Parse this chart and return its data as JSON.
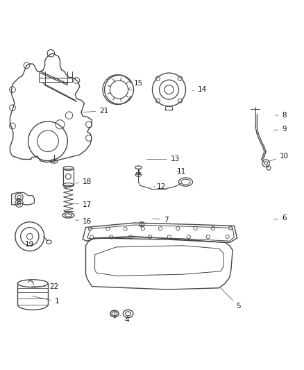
{
  "bg_color": "#ffffff",
  "line_color": "#444444",
  "fig_width": 4.39,
  "fig_height": 5.33,
  "dpi": 100,
  "label_fontsize": 7.5,
  "callouts": {
    "1": [
      0.185,
      0.115,
      0.095,
      0.135
    ],
    "2": [
      0.055,
      0.445,
      0.075,
      0.46
    ],
    "4": [
      0.415,
      0.055,
      0.395,
      0.07
    ],
    "5": [
      0.785,
      0.1,
      0.72,
      0.165
    ],
    "6": [
      0.935,
      0.39,
      0.895,
      0.385
    ],
    "7": [
      0.545,
      0.385,
      0.495,
      0.39
    ],
    "8": [
      0.935,
      0.73,
      0.9,
      0.73
    ],
    "9": [
      0.935,
      0.685,
      0.895,
      0.68
    ],
    "10": [
      0.935,
      0.595,
      0.875,
      0.575
    ],
    "11": [
      0.595,
      0.545,
      0.575,
      0.545
    ],
    "12": [
      0.53,
      0.495,
      0.505,
      0.495
    ],
    "13": [
      0.575,
      0.585,
      0.475,
      0.585
    ],
    "14": [
      0.665,
      0.815,
      0.625,
      0.81
    ],
    "15": [
      0.455,
      0.835,
      0.415,
      0.815
    ],
    "16": [
      0.285,
      0.38,
      0.24,
      0.385
    ],
    "17": [
      0.285,
      0.435,
      0.235,
      0.44
    ],
    "18": [
      0.285,
      0.51,
      0.24,
      0.505
    ],
    "19": [
      0.095,
      0.305,
      0.105,
      0.33
    ],
    "21": [
      0.34,
      0.745,
      0.265,
      0.74
    ],
    "22": [
      0.175,
      0.165,
      0.095,
      0.165
    ]
  }
}
